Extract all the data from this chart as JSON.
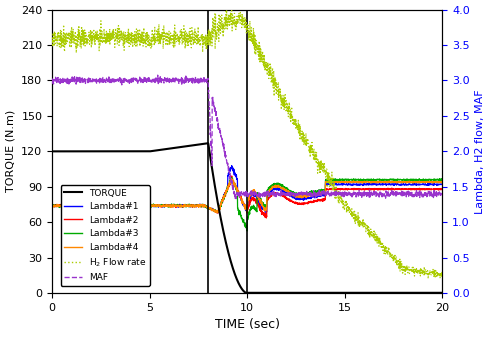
{
  "title": "",
  "xlabel": "TIME (sec)",
  "ylabel_left": "TORQUE (N.m)",
  "ylabel_right": "Lambda, H2 flow, MAF",
  "xlim": [
    0,
    20
  ],
  "ylim_left": [
    0,
    240
  ],
  "ylim_right": [
    0,
    4.0
  ],
  "yticks_left": [
    0,
    30,
    60,
    90,
    120,
    150,
    180,
    210,
    240
  ],
  "yticks_right": [
    0.0,
    0.5,
    1.0,
    1.5,
    2.0,
    2.5,
    3.0,
    3.5,
    4.0
  ],
  "xticks": [
    0,
    5,
    10,
    15,
    20
  ],
  "vlines": [
    8.0,
    10.0
  ],
  "background_color": "#ffffff",
  "torque_color": "#000000",
  "lambda1_color": "#0000ff",
  "lambda2_color": "#ff0000",
  "lambda3_color": "#00aa00",
  "lambda4_color": "#ff8800",
  "h2flow_color": "#aacc00",
  "maf_color": "#9933cc",
  "legend_fontsize": 6.5,
  "axis_fontsize": 8,
  "xlabel_fontsize": 9
}
